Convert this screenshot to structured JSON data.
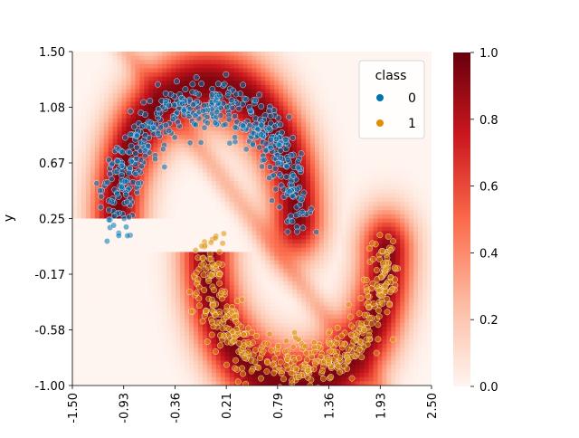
{
  "chart_data": {
    "type": "scatter",
    "background": "heatmap",
    "xlim": [
      -1.5,
      2.5
    ],
    "ylim": [
      -1.0,
      1.5
    ],
    "xticks": [
      "-1.50",
      "-0.93",
      "-0.36",
      "0.21",
      "0.79",
      "1.36",
      "1.93",
      "2.50"
    ],
    "yticks": [
      "1.50",
      "1.08",
      "0.67",
      "0.25",
      "-0.17",
      "-0.58",
      "-1.00"
    ],
    "ylabel": "y",
    "colorbar": {
      "ticks": [
        "1.0",
        "0.8",
        "0.6",
        "0.4",
        "0.2",
        "0.0"
      ],
      "range": [
        0,
        1
      ],
      "colormap": "Reds"
    },
    "legend": {
      "title": "class",
      "placement": "top-right",
      "entries": [
        {
          "label": "0",
          "color": "#0173b2"
        },
        {
          "label": "1",
          "color": "#de8f05"
        }
      ]
    },
    "series": [
      {
        "name": "0",
        "color": "#0173b2",
        "shape": "upper half-moon",
        "center": [
          0.0,
          0.25
        ],
        "radius": 1.0,
        "count": 500
      },
      {
        "name": "1",
        "color": "#de8f05",
        "shape": "lower half-moon",
        "center": [
          1.0,
          0.0
        ],
        "radius": 1.0,
        "count": 500
      }
    ]
  }
}
